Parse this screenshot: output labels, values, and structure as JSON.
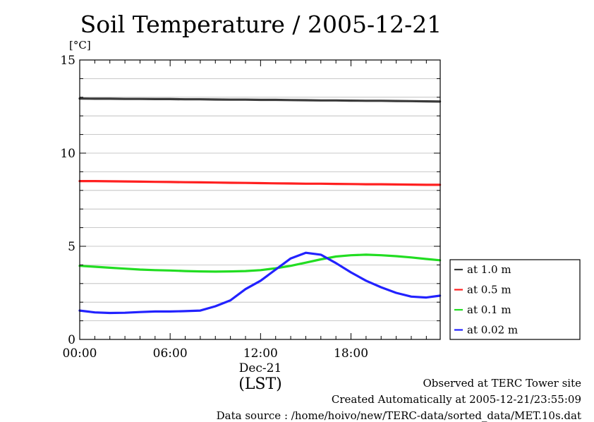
{
  "chart_data": {
    "type": "line",
    "title": "Soil Temperature / 2005-12-21",
    "ylabel": "[°C]",
    "xlabel": "(LST)",
    "date_label": "Dec-21",
    "x_ticks": [
      "00:00",
      "06:00",
      "12:00",
      "18:00"
    ],
    "x_tick_hours": [
      0,
      6,
      12,
      18
    ],
    "xlim_hours": [
      0,
      23.92
    ],
    "y_ticks": [
      0,
      5,
      10,
      15
    ],
    "ylim": [
      0,
      15
    ],
    "grid": true,
    "legend_position": "right",
    "x": [
      0,
      1,
      2,
      3,
      4,
      5,
      6,
      7,
      8,
      9,
      10,
      11,
      12,
      13,
      14,
      15,
      16,
      17,
      18,
      19,
      20,
      21,
      22,
      23,
      23.9
    ],
    "series": [
      {
        "name": "at 1.0 m",
        "color": "#3a3a3a",
        "values": [
          12.93,
          12.92,
          12.92,
          12.91,
          12.91,
          12.9,
          12.9,
          12.89,
          12.89,
          12.88,
          12.87,
          12.87,
          12.86,
          12.86,
          12.85,
          12.84,
          12.83,
          12.83,
          12.82,
          12.81,
          12.81,
          12.8,
          12.79,
          12.78,
          12.77
        ]
      },
      {
        "name": "at 0.5 m",
        "color": "#ff2020",
        "values": [
          8.5,
          8.5,
          8.49,
          8.48,
          8.47,
          8.46,
          8.45,
          8.44,
          8.43,
          8.42,
          8.41,
          8.4,
          8.39,
          8.38,
          8.37,
          8.36,
          8.36,
          8.35,
          8.34,
          8.33,
          8.33,
          8.32,
          8.31,
          8.3,
          8.3
        ]
      },
      {
        "name": "at 0.1 m",
        "color": "#22dd22",
        "values": [
          3.95,
          3.9,
          3.85,
          3.8,
          3.75,
          3.72,
          3.7,
          3.67,
          3.65,
          3.64,
          3.65,
          3.67,
          3.72,
          3.82,
          3.95,
          4.12,
          4.3,
          4.45,
          4.52,
          4.55,
          4.52,
          4.47,
          4.4,
          4.32,
          4.25
        ]
      },
      {
        "name": "at 0.02 m",
        "color": "#2222ff",
        "values": [
          1.55,
          1.45,
          1.42,
          1.43,
          1.47,
          1.5,
          1.5,
          1.52,
          1.55,
          1.78,
          2.1,
          2.7,
          3.15,
          3.75,
          4.35,
          4.65,
          4.55,
          4.1,
          3.6,
          3.15,
          2.8,
          2.5,
          2.3,
          2.25,
          2.35
        ]
      }
    ]
  },
  "footer": {
    "line1": "Observed at TERC Tower site",
    "line2": "Created Automatically at 2005-12-21/23:55:09",
    "line3": "Data source : /home/hoivo/new/TERC-data/sorted_data/MET.10s.dat"
  }
}
